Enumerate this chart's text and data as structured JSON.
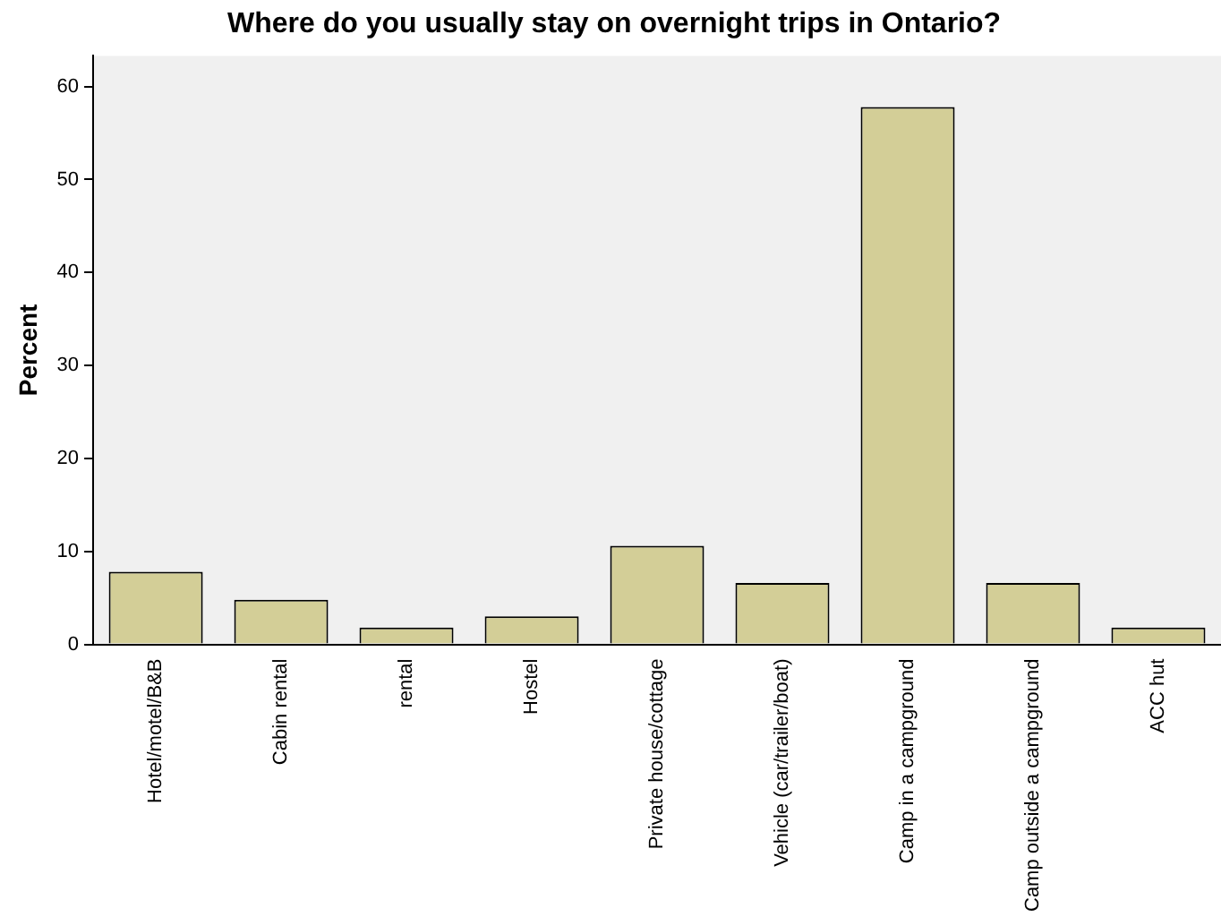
{
  "chart_data": {
    "type": "bar",
    "title": "Where do you usually stay on overnight trips in Ontario?",
    "ylabel": "Percent",
    "categories": [
      "Hotel/motel/B&B",
      "Cabin rental",
      "rental",
      "Hostel",
      "Private house/cottage",
      "Vehicle (car/trailer/boat)",
      "Camp in a campground",
      "Camp outside a campground",
      "ACC hut"
    ],
    "values": [
      7.8,
      4.8,
      1.8,
      3.0,
      10.6,
      6.6,
      57.8,
      6.6,
      1.8
    ],
    "color": "#d3ce97",
    "ylim": [
      0,
      63.3
    ],
    "yticks": [
      0,
      10,
      20,
      30,
      40,
      50,
      60
    ],
    "grid": false,
    "legend": false
  }
}
